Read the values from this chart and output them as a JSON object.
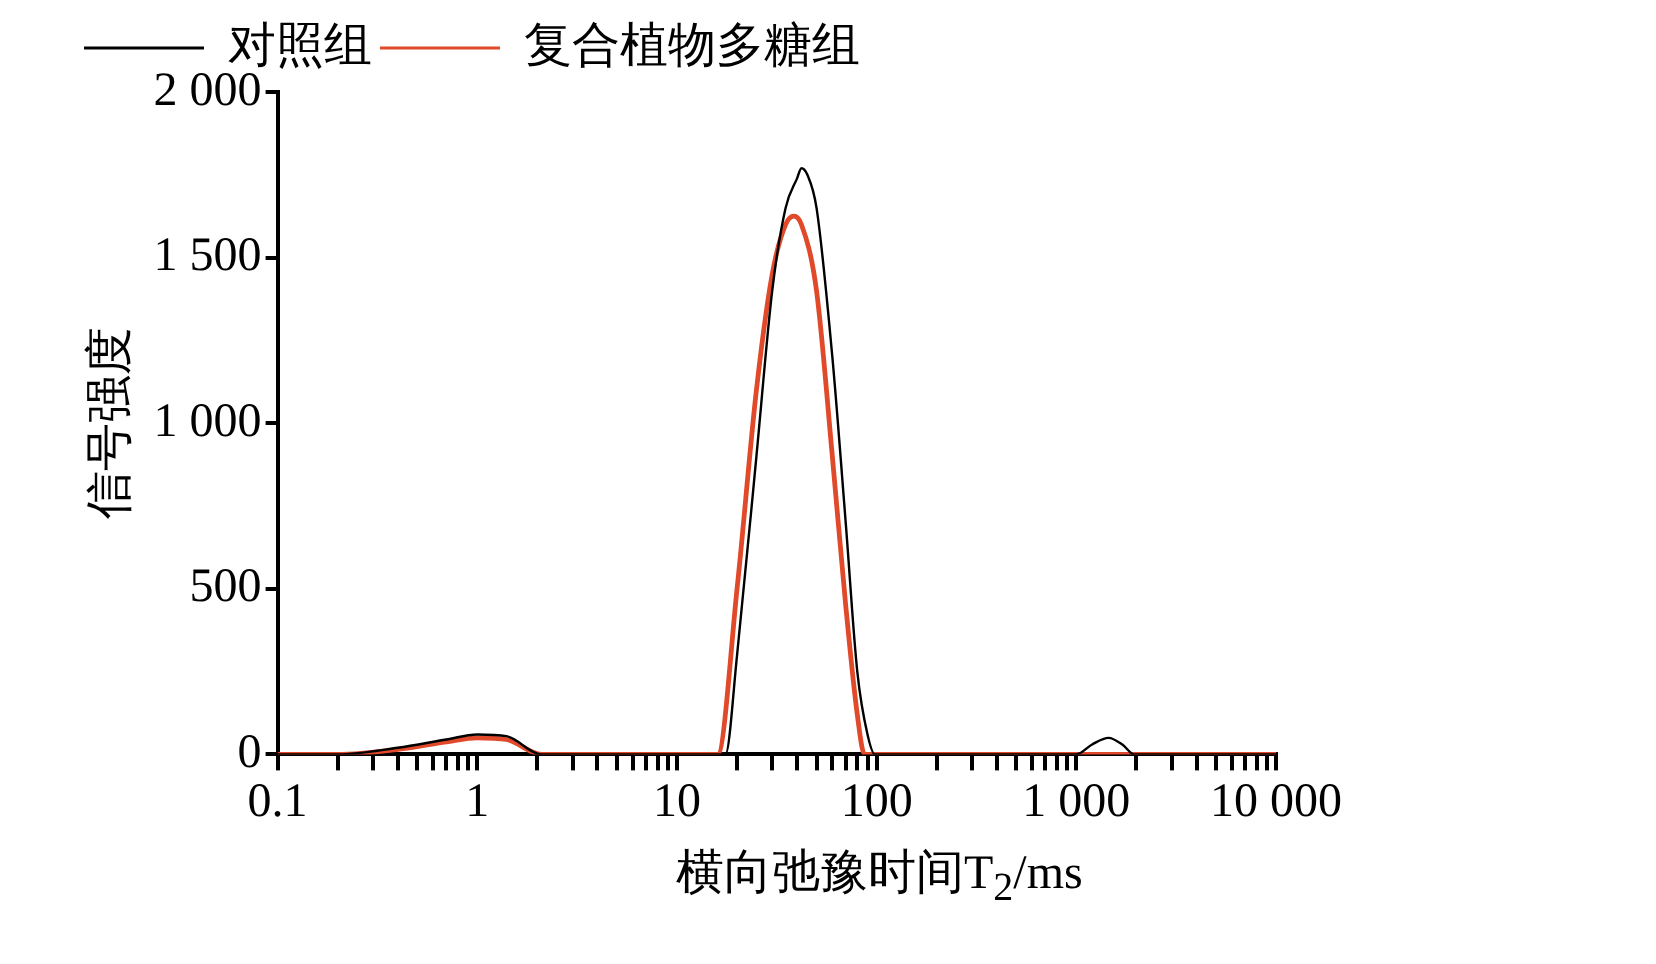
{
  "chart_data": {
    "type": "line",
    "xlabel": "横向弛豫时间T$_{2}$/ms",
    "ylabel": "信号强度",
    "log": "x",
    "grid": false,
    "legend": "top left",
    "marker": "none",
    "line_style": "solid",
    "xlim": [
      0.1,
      10000
    ],
    "ylim": [
      0,
      2000
    ],
    "xticks": [
      0.1,
      {
        "value": 0.2,
        "label": null
      },
      {
        "value": 0.3,
        "label": null
      },
      {
        "value": 0.4,
        "label": null
      },
      {
        "value": 0.5,
        "label": null
      },
      {
        "value": 0.6,
        "label": null
      },
      {
        "value": 0.7,
        "label": null
      },
      {
        "value": 0.8,
        "label": null
      },
      {
        "value": 0.9,
        "label": null
      },
      1,
      {
        "value": 2,
        "label": null
      },
      {
        "value": 3,
        "label": null
      },
      {
        "value": 4,
        "label": null
      },
      {
        "value": 5,
        "label": null
      },
      {
        "value": 6,
        "label": null
      },
      {
        "value": 7,
        "label": null
      },
      {
        "value": 8,
        "label": null
      },
      {
        "value": 9,
        "label": null
      },
      10,
      {
        "value": 20,
        "label": null
      },
      {
        "value": 30,
        "label": null
      },
      {
        "value": 40,
        "label": null
      },
      {
        "value": 50,
        "label": null
      },
      {
        "value": 60,
        "label": null
      },
      {
        "value": 70,
        "label": null
      },
      {
        "value": 80,
        "label": null
      },
      {
        "value": 90,
        "label": null
      },
      100,
      {
        "value": 200,
        "label": null
      },
      {
        "value": 300,
        "label": null
      },
      {
        "value": 400,
        "label": null
      },
      {
        "value": 500,
        "label": null
      },
      {
        "value": 600,
        "label": null
      },
      {
        "value": 700,
        "label": null
      },
      {
        "value": 800,
        "label": null
      },
      {
        "value": 900,
        "label": null
      },
      {
        "value": 1000,
        "label": "1 000"
      },
      {
        "value": 2000,
        "label": null
      },
      {
        "value": 3000,
        "label": null
      },
      {
        "value": 4000,
        "label": null
      },
      {
        "value": 5000,
        "label": null
      },
      {
        "value": 6000,
        "label": null
      },
      {
        "value": 7000,
        "label": null
      },
      {
        "value": 8000,
        "label": null
      },
      {
        "value": 9000,
        "label": null
      },
      {
        "value": 10000,
        "label": "10 000"
      }
    ],
    "yticks": [
      0,
      500,
      {
        "value": 1000,
        "label": "1 000"
      },
      {
        "value": 1500,
        "label": "1 500"
      },
      {
        "value": 2000,
        "label": "2 000"
      }
    ],
    "series": [
      {
        "name": "对照组",
        "color": "#000000",
        "x": [
          0.1,
          0.2,
          0.4,
          0.7,
          1,
          1.4,
          2.1,
          10,
          17.5,
          20,
          25,
          30,
          35,
          40,
          42,
          45,
          50,
          60,
          70,
          80,
          90,
          98,
          200,
          1000,
          1200,
          1450,
          1700,
          1950,
          5000,
          10000
        ],
        "values": [
          0,
          0,
          20,
          45,
          60,
          55,
          0,
          0,
          0,
          300,
          900,
          1400,
          1650,
          1740,
          1770,
          1750,
          1650,
          1200,
          700,
          250,
          60,
          0,
          0,
          0,
          30,
          50,
          30,
          0,
          0,
          0
        ]
      },
      {
        "name": "复合植物多糖组",
        "color": "#e0492a",
        "x": [
          0.1,
          0.2,
          0.4,
          0.7,
          1,
          1.4,
          2.1,
          10,
          16,
          20,
          25,
          30,
          35,
          38.5,
          42,
          50,
          60,
          70,
          80,
          87,
          200,
          1000,
          10000
        ],
        "values": [
          0,
          0,
          15,
          38,
          50,
          45,
          0,
          0,
          0,
          500,
          1100,
          1450,
          1600,
          1625,
          1600,
          1400,
          900,
          450,
          120,
          0,
          0,
          0,
          0
        ]
      }
    ]
  }
}
